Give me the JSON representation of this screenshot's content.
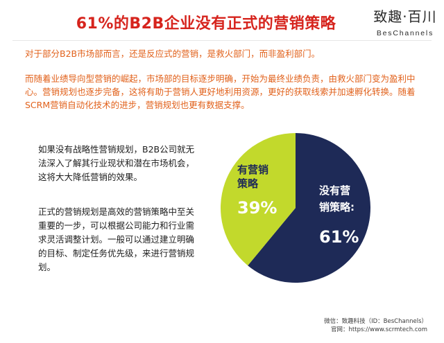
{
  "header": {
    "title": "61%的B2B企业没有正式的营销策略",
    "brand_name": "致趣·百川",
    "brand_en": "BesChannels"
  },
  "intro": {
    "para1": "对于部分B2B市场部而言，还是反应式的营销，是救火部门，而非盈利部门。",
    "para2": "而随着业绩导向型营销的崛起，市场部的目标逐步明确，开始为最终业绩负责，由救火部门变为盈利中心。营销规划也逐步完备，这将有助于营销人更好地利用资源，更好的获取线索并加速孵化转换。随着SCRM营销自动化技术的进步，营销规划也更有数据支撑。"
  },
  "left_text": {
    "para1": "如果没有战略性营销规划，B2B公司就无法深入了解其行业现状和潜在市场机会，这将大大降低营销的效果。",
    "para2": "正式的营销规划是高效的营销策略中至关重要的一步，可以根据公司能力和行业需求灵活调整计划。一般可以通过建立明确的目标、制定任务优先级，来进行营销规划。"
  },
  "chart_data": {
    "type": "pie",
    "title": "",
    "slices": [
      {
        "label_line1": "没有营",
        "label_line2": "销策略:",
        "value": 61,
        "value_label": "61%",
        "color": "#1e2a57"
      },
      {
        "label_line1": "有营销",
        "label_line2": "策略",
        "value": 39,
        "value_label": "39%",
        "color": "#c2d92c"
      }
    ]
  },
  "footer": {
    "line1": "微信：致趣科技（ID：BesChannels）",
    "line2": "官网：https://www.scrmtech.com"
  },
  "colors": {
    "title": "#d6241d",
    "intro_text": "#e1611b"
  }
}
